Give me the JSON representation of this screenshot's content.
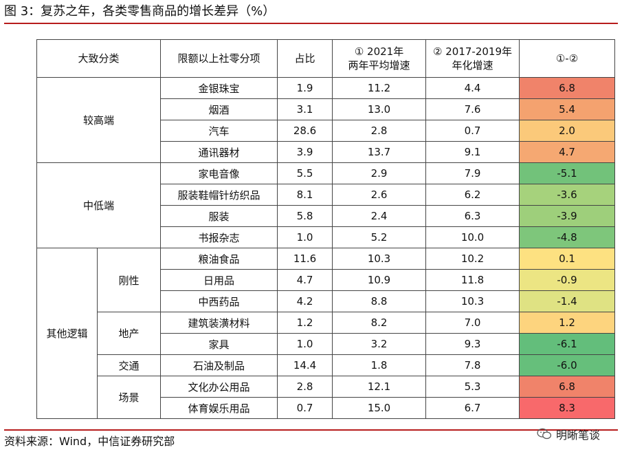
{
  "title": "图 3：复苏之年，各类零售商品的增长差异（%）",
  "headers": {
    "category": "大致分类",
    "item": "限额以上社零分项",
    "share": "占比",
    "g2021": [
      "① 2021年",
      "两年平均增速"
    ],
    "g1719": [
      "② 2017-2019年",
      "年化增速"
    ],
    "diff": "①-②"
  },
  "groups": {
    "high": "较高端",
    "midlow": "中低端",
    "other": "其他逻辑",
    "rigid": "刚性",
    "realestate": "地产",
    "transport": "交通",
    "scene": "场景"
  },
  "rows": [
    {
      "item": "金银珠宝",
      "share": "1.9",
      "g2021": "11.2",
      "g1719": "4.4",
      "diff": "6.8",
      "color": "#f0836a"
    },
    {
      "item": "烟酒",
      "share": "3.1",
      "g2021": "13.0",
      "g1719": "7.6",
      "diff": "5.4",
      "color": "#f4a26f"
    },
    {
      "item": "汽车",
      "share": "28.6",
      "g2021": "2.8",
      "g1719": "0.7",
      "diff": "2.0",
      "color": "#fbc97a"
    },
    {
      "item": "通讯器材",
      "share": "3.9",
      "g2021": "13.7",
      "g1719": "9.1",
      "diff": "4.7",
      "color": "#f5a872"
    },
    {
      "item": "家电音像",
      "share": "5.5",
      "g2021": "2.9",
      "g1719": "7.9",
      "diff": "-5.1",
      "color": "#72c27a"
    },
    {
      "item": "服装鞋帽针纺织品",
      "share": "8.1",
      "g2021": "2.6",
      "g1719": "6.2",
      "diff": "-3.6",
      "color": "#a6d27c"
    },
    {
      "item": "服装",
      "share": "5.8",
      "g2021": "2.4",
      "g1719": "6.3",
      "diff": "-3.9",
      "color": "#9ecf7b"
    },
    {
      "item": "书报杂志",
      "share": "1.0",
      "g2021": "5.2",
      "g1719": "10.0",
      "diff": "-4.8",
      "color": "#7ec67b"
    },
    {
      "item": "粮油食品",
      "share": "11.6",
      "g2021": "10.3",
      "g1719": "10.2",
      "diff": "0.1",
      "color": "#fde181"
    },
    {
      "item": "日用品",
      "share": "4.7",
      "g2021": "10.9",
      "g1719": "11.8",
      "diff": "-0.9",
      "color": "#ece583"
    },
    {
      "item": "中西药品",
      "share": "4.2",
      "g2021": "8.8",
      "g1719": "10.3",
      "diff": "-1.4",
      "color": "#dfe283"
    },
    {
      "item": "建筑装潢材料",
      "share": "1.2",
      "g2021": "8.2",
      "g1719": "7.0",
      "diff": "1.2",
      "color": "#fdd47e"
    },
    {
      "item": "家具",
      "share": "1.0",
      "g2021": "3.2",
      "g1719": "9.3",
      "diff": "-6.1",
      "color": "#63be7b"
    },
    {
      "item": "石油及制品",
      "share": "14.4",
      "g2021": "1.8",
      "g1719": "7.8",
      "diff": "-6.0",
      "color": "#66bf7b"
    },
    {
      "item": "文化办公用品",
      "share": "2.8",
      "g2021": "12.1",
      "g1719": "5.3",
      "diff": "6.8",
      "color": "#f0836a"
    },
    {
      "item": "体育娱乐用品",
      "share": "0.7",
      "g2021": "15.0",
      "g1719": "6.7",
      "diff": "8.3",
      "color": "#f8696b"
    }
  ],
  "source": "资料来源：Wind，中信证券研究部",
  "watermark": "明晰笔谈"
}
